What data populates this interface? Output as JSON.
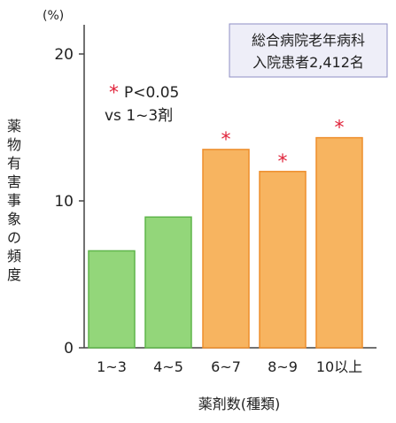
{
  "chart_data": {
    "type": "bar",
    "categories": [
      "1~3",
      "4~5",
      "6~7",
      "8~9",
      "10以上"
    ],
    "values": [
      6.6,
      8.9,
      13.5,
      12.0,
      14.3
    ],
    "significant": [
      false,
      false,
      true,
      true,
      true
    ],
    "ylim": [
      0,
      22
    ],
    "yticks": [
      0,
      10,
      20
    ],
    "y_unit": "(%)",
    "ylabel": "薬物有害事象の頻度",
    "xlabel": "薬剤数(種類)",
    "significance_marker": "*",
    "annotation_line1": "P<0.05",
    "annotation_line2": "vs 1~3剤",
    "info_line1": "総合病院老年病科",
    "info_line2": "入院患者2,412名",
    "colors": {
      "green_fill": "#93d67a",
      "green_edge": "#5fb54a",
      "orange_fill": "#f7b460",
      "orange_edge": "#ee8e2c",
      "star": "#e0243b",
      "axis": "#444444",
      "info_bg": "#eeeef8",
      "info_border": "#8f8fc4"
    }
  }
}
